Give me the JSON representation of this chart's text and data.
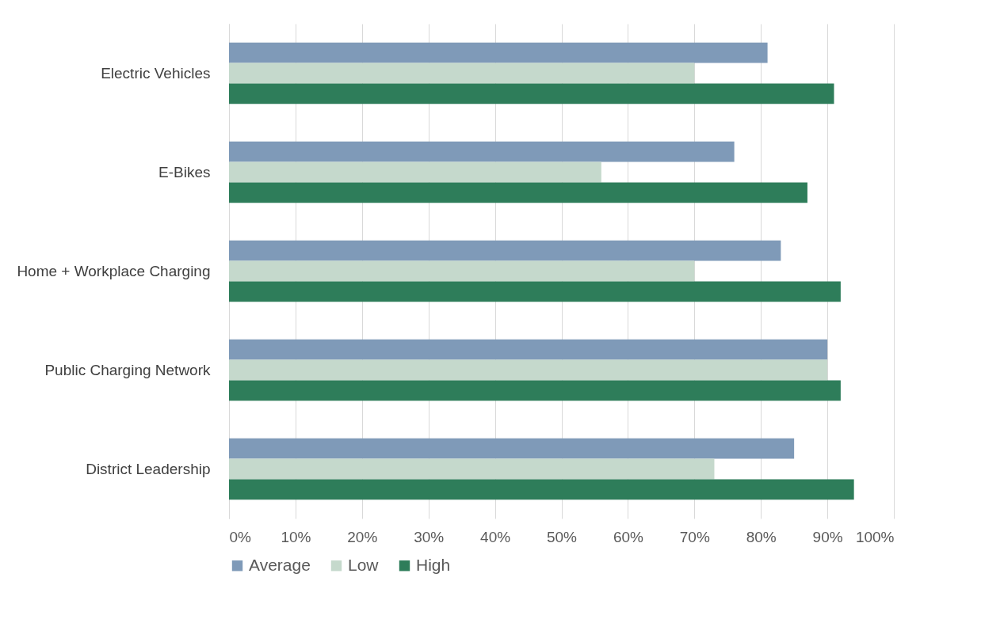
{
  "chart_data": {
    "type": "bar",
    "orientation": "horizontal",
    "categories": [
      "Electric Vehicles",
      "E-Bikes",
      "Home + Workplace Charging",
      "Public Charging Network",
      "District Leadership"
    ],
    "series": [
      {
        "name": "Average",
        "color": "#7f9ab8",
        "values": [
          81,
          76,
          83,
          90,
          85
        ]
      },
      {
        "name": "Low",
        "color": "#c5d9cc",
        "values": [
          70,
          56,
          70,
          90,
          73
        ]
      },
      {
        "name": "High",
        "color": "#2e7d5a",
        "values": [
          91,
          87,
          92,
          92,
          94
        ]
      }
    ],
    "xlim": [
      0,
      100
    ],
    "xticks": [
      {
        "value": 0,
        "label": "0%"
      },
      {
        "value": 10,
        "label": "10%"
      },
      {
        "value": 20,
        "label": "20%"
      },
      {
        "value": 30,
        "label": "30%"
      },
      {
        "value": 40,
        "label": "40%"
      },
      {
        "value": 50,
        "label": "50%"
      },
      {
        "value": 60,
        "label": "60%"
      },
      {
        "value": 70,
        "label": "70%"
      },
      {
        "value": 80,
        "label": "80%"
      },
      {
        "value": 90,
        "label": "90%"
      },
      {
        "value": 100,
        "label": "100%"
      }
    ],
    "grid": "x",
    "legend": "bottom"
  }
}
